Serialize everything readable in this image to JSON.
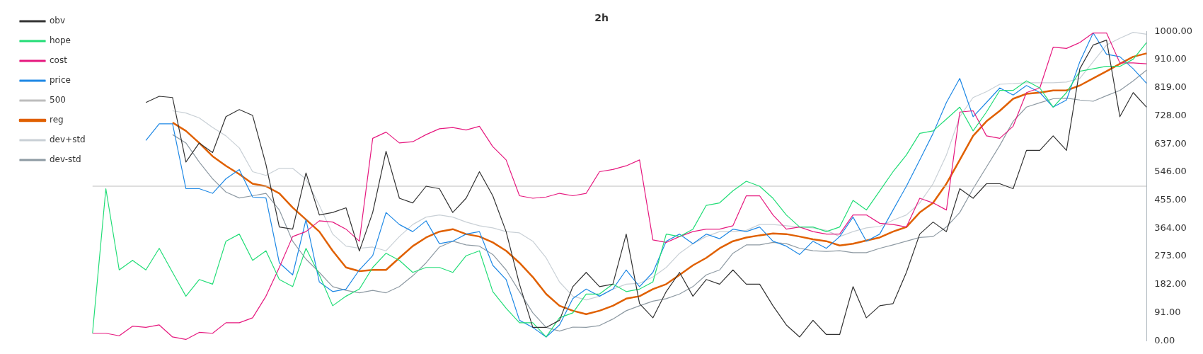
{
  "chart_data": {
    "type": "line",
    "title": "2h",
    "categories": [
      null,
      null,
      null,
      null,
      null,
      null,
      null,
      null,
      null,
      null,
      null,
      null,
      null,
      null,
      null,
      null,
      null,
      null,
      null,
      null,
      null,
      null,
      null,
      null,
      null,
      null,
      null,
      null,
      null,
      null,
      null,
      null,
      null,
      null,
      null,
      null,
      null,
      null,
      null,
      null,
      null,
      null,
      null,
      null,
      null,
      null,
      null,
      null,
      null,
      null,
      null,
      null,
      null,
      null,
      null,
      null,
      null,
      null,
      null,
      null,
      null,
      null,
      null,
      null,
      null,
      null,
      null,
      null,
      null,
      null,
      null,
      null,
      null,
      null,
      null,
      null,
      null,
      null,
      null,
      null
    ],
    "series": [
      {
        "name": "obv",
        "color": "#333333",
        "values": [
          null,
          null,
          null,
          null,
          771,
          791,
          787,
          578,
          640,
          609,
          725,
          748,
          729,
          570,
          368,
          361,
          543,
          407,
          415,
          430,
          290,
          415,
          613,
          461,
          446,
          500,
          492,
          415,
          461,
          547,
          469,
          353,
          183,
          43,
          43,
          66,
          175,
          221,
          175,
          183,
          345,
          120,
          74,
          159,
          221,
          144,
          198,
          183,
          229,
          183,
          183,
          113,
          51,
          12,
          66,
          20,
          20,
          175,
          74,
          113,
          120,
          221,
          345,
          384,
          353,
          492,
          461,
          508,
          508,
          492,
          616,
          616,
          663,
          616,
          880,
          957,
          973,
          725,
          803,
          756
        ]
      },
      {
        "name": "hope",
        "color": "#22dd77",
        "values": [
          24,
          492,
          229,
          260,
          229,
          299,
          221,
          144,
          198,
          183,
          322,
          345,
          260,
          291,
          198,
          175,
          299,
          213,
          113,
          144,
          167,
          237,
          283,
          260,
          221,
          237,
          237,
          221,
          275,
          291,
          159,
          105,
          58,
          58,
          12,
          74,
          90,
          151,
          151,
          183,
          159,
          167,
          190,
          345,
          337,
          361,
          438,
          446,
          485,
          516,
          500,
          461,
          407,
          368,
          368,
          353,
          368,
          454,
          423,
          485,
          547,
          601,
          671,
          679,
          717,
          756,
          679,
          740,
          810,
          810,
          841,
          818,
          756,
          803,
          872,
          880,
          888,
          888,
          911,
          965
        ]
      },
      {
        "name": "cost",
        "color": "#e6197f",
        "values": [
          24,
          24,
          16,
          47,
          43,
          51,
          12,
          4,
          27,
          24,
          58,
          58,
          74,
          144,
          237,
          337,
          353,
          388,
          384,
          361,
          322,
          655,
          675,
          640,
          644,
          667,
          686,
          690,
          682,
          694,
          628,
          585,
          469,
          461,
          465,
          477,
          469,
          477,
          547,
          554,
          566,
          585,
          326,
          318,
          337,
          353,
          361,
          361,
          372,
          469,
          469,
          407,
          361,
          368,
          353,
          345,
          345,
          407,
          407,
          380,
          376,
          368,
          461,
          446,
          423,
          740,
          744,
          663,
          655,
          694,
          803,
          818,
          950,
          946,
          965,
          996,
          996,
          899,
          899,
          896
        ]
      },
      {
        "name": "price",
        "color": "#1e88e5",
        "values": [
          null,
          null,
          null,
          null,
          648,
          702,
          702,
          492,
          492,
          477,
          524,
          554,
          465,
          462,
          252,
          213,
          392,
          190,
          159,
          167,
          229,
          275,
          415,
          376,
          353,
          388,
          314,
          322,
          345,
          353,
          244,
          198,
          66,
          43,
          12,
          51,
          136,
          167,
          144,
          167,
          229,
          175,
          221,
          322,
          345,
          314,
          345,
          330,
          361,
          353,
          368,
          322,
          306,
          279,
          322,
          299,
          337,
          400,
          322,
          345,
          423,
          500,
          585,
          671,
          771,
          849,
          725,
          771,
          818,
          795,
          826,
          803,
          756,
          779,
          903,
          996,
          927,
          919,
          880,
          833
        ]
      },
      {
        "name": "500",
        "color": "#bdbdbd",
        "values": [
          500,
          500,
          500,
          500,
          500,
          500,
          500,
          500,
          500,
          500,
          500,
          500,
          500,
          500,
          500,
          500,
          500,
          500,
          500,
          500,
          500,
          500,
          500,
          500,
          500,
          500,
          500,
          500,
          500,
          500,
          500,
          500,
          500,
          500,
          500,
          500,
          500,
          500,
          500,
          500,
          500,
          500,
          500,
          500,
          500,
          500,
          500,
          500,
          500,
          500,
          500,
          500,
          500,
          500,
          500,
          500,
          500,
          500,
          500,
          500,
          500,
          500,
          500,
          500,
          500,
          500,
          500,
          500,
          500,
          500,
          500,
          500,
          500,
          500,
          500,
          500,
          500,
          500,
          500,
          500
        ]
      },
      {
        "name": "reg",
        "color": "#e06000",
        "values": [
          null,
          null,
          null,
          null,
          null,
          null,
          706,
          679,
          640,
          597,
          566,
          539,
          508,
          500,
          477,
          431,
          392,
          353,
          291,
          237,
          225,
          229,
          229,
          268,
          306,
          334,
          353,
          361,
          345,
          337,
          318,
          291,
          252,
          206,
          151,
          113,
          97,
          86,
          97,
          113,
          136,
          144,
          167,
          183,
          213,
          244,
          268,
          299,
          322,
          334,
          341,
          347,
          345,
          337,
          328,
          322,
          308,
          314,
          324,
          334,
          353,
          368,
          415,
          446,
          508,
          585,
          663,
          710,
          744,
          783,
          799,
          803,
          810,
          810,
          826,
          849,
          872,
          896,
          919,
          930
        ]
      },
      {
        "name": "dev+std",
        "color": "#c9d0d6",
        "values": [
          null,
          null,
          null,
          null,
          null,
          null,
          744,
          737,
          721,
          690,
          663,
          624,
          547,
          535,
          558,
          558,
          523,
          438,
          345,
          306,
          299,
          303,
          291,
          337,
          376,
          400,
          407,
          400,
          384,
          372,
          365,
          353,
          349,
          322,
          268,
          190,
          144,
          132,
          144,
          167,
          183,
          186,
          206,
          237,
          283,
          314,
          337,
          353,
          353,
          357,
          376,
          376,
          372,
          368,
          365,
          357,
          337,
          353,
          365,
          370,
          390,
          407,
          446,
          508,
          601,
          725,
          787,
          806,
          830,
          832,
          835,
          835,
          835,
          837,
          849,
          903,
          957,
          979,
          998,
          992
        ]
      },
      {
        "name": "dev-std",
        "color": "#8e9aa3",
        "values": [
          null,
          null,
          null,
          null,
          null,
          null,
          667,
          640,
          578,
          524,
          481,
          462,
          469,
          477,
          423,
          322,
          264,
          221,
          175,
          163,
          155,
          163,
          155,
          175,
          210,
          252,
          303,
          322,
          310,
          306,
          279,
          229,
          159,
          90,
          43,
          31,
          44,
          43,
          49,
          70,
          97,
          113,
          128,
          136,
          151,
          175,
          213,
          229,
          283,
          310,
          310,
          318,
          314,
          299,
          291,
          289,
          291,
          285,
          285,
          299,
          310,
          322,
          334,
          337,
          368,
          415,
          492,
          562,
          632,
          710,
          756,
          770,
          783,
          785,
          779,
          775,
          793,
          810,
          841,
          876
        ]
      }
    ],
    "ylim": [
      0,
      1000
    ],
    "yticks": [
      {
        "value": 0,
        "label": "0.00"
      },
      {
        "value": 91,
        "label": "91.00"
      },
      {
        "value": 182,
        "label": "182.00"
      },
      {
        "value": 273,
        "label": "273.00"
      },
      {
        "value": 364,
        "label": "364.00"
      },
      {
        "value": 455,
        "label": "455.00"
      },
      {
        "value": 546,
        "label": "546.00"
      },
      {
        "value": 637,
        "label": "637.00"
      },
      {
        "value": 728,
        "label": "728.00"
      },
      {
        "value": 819,
        "label": "819.00"
      },
      {
        "value": 910,
        "label": "910.00"
      },
      {
        "value": 1000,
        "label": "1000.00"
      }
    ],
    "tick_labels": "y",
    "grid": false,
    "legend": "top left",
    "marker": "none",
    "line_style": "solid"
  }
}
